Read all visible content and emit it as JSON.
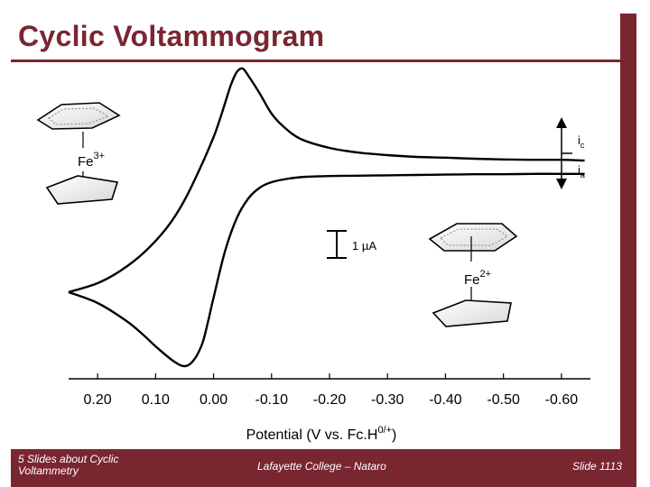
{
  "slide": {
    "title": "Cyclic Voltammogram",
    "footer_left": "5 Slides about Cyclic Voltammetry",
    "footer_center": "Lafayette College – Nataro",
    "footer_right": "Slide 1113",
    "accent_color": "#7a2631"
  },
  "chart_data": {
    "type": "line",
    "title": "",
    "xlabel_main": "Potential (V vs. Fc.H",
    "xlabel_sup": "0/+",
    "xlabel_end": ")",
    "ylabel": "",
    "x_reversed": true,
    "xlim": [
      0.25,
      -0.65
    ],
    "x_ticks": [
      0.2,
      0.1,
      0.0,
      -0.1,
      -0.2,
      -0.3,
      -0.4,
      -0.5,
      -0.6
    ],
    "x_tick_labels": [
      "0.20",
      "0.10",
      "0.00",
      "-0.10",
      "-0.20",
      "-0.30",
      "-0.40",
      "-0.50",
      "-0.60"
    ],
    "y_units": "µA",
    "ylim": [
      -5.1,
      3.4
    ],
    "grid": false,
    "scale_bar": {
      "value": 1,
      "label": "1 µA"
    },
    "current_labels": {
      "cathodic": "i",
      "cathodic_sub": "c",
      "anodic": "i",
      "anodic_sub": "a"
    },
    "species": [
      {
        "label": "Fe",
        "charge": "3+"
      },
      {
        "label": "Fe",
        "charge": "2+"
      }
    ],
    "series": [
      {
        "name": "",
        "x": [
          0.25,
          0.2,
          0.15,
          0.12,
          0.1,
          0.07,
          0.05,
          0.035,
          0.02,
          0.01,
          0.0,
          -0.02,
          -0.04,
          -0.06,
          -0.08,
          -0.1,
          -0.13,
          -0.16,
          -0.2,
          -0.25,
          -0.3,
          -0.35,
          -0.4,
          -0.45,
          -0.5,
          -0.55,
          -0.6,
          -0.64
        ],
        "y": [
          -2.95,
          -3.25,
          -3.75,
          -4.15,
          -4.45,
          -4.85,
          -5.0,
          -4.85,
          -4.4,
          -3.8,
          -3.1,
          -1.8,
          -0.9,
          -0.35,
          -0.05,
          0.1,
          0.2,
          0.25,
          0.27,
          0.28,
          0.29,
          0.3,
          0.31,
          0.32,
          0.32,
          0.33,
          0.33,
          0.33
        ]
      },
      {
        "name": "",
        "x": [
          -0.64,
          -0.6,
          -0.55,
          -0.5,
          -0.45,
          -0.4,
          -0.35,
          -0.3,
          -0.25,
          -0.2,
          -0.15,
          -0.12,
          -0.1,
          -0.08,
          -0.06,
          -0.05,
          -0.04,
          -0.03,
          -0.02,
          -0.01,
          0.0,
          0.02,
          0.05,
          0.08,
          0.12,
          0.16,
          0.2,
          0.25
        ],
        "y": [
          0.7,
          0.72,
          0.72,
          0.73,
          0.75,
          0.78,
          0.8,
          0.85,
          0.92,
          1.05,
          1.3,
          1.65,
          2.0,
          2.55,
          3.05,
          3.25,
          3.15,
          2.8,
          2.3,
          1.8,
          1.35,
          0.6,
          -0.4,
          -1.15,
          -1.85,
          -2.35,
          -2.7,
          -2.95
        ]
      }
    ]
  }
}
